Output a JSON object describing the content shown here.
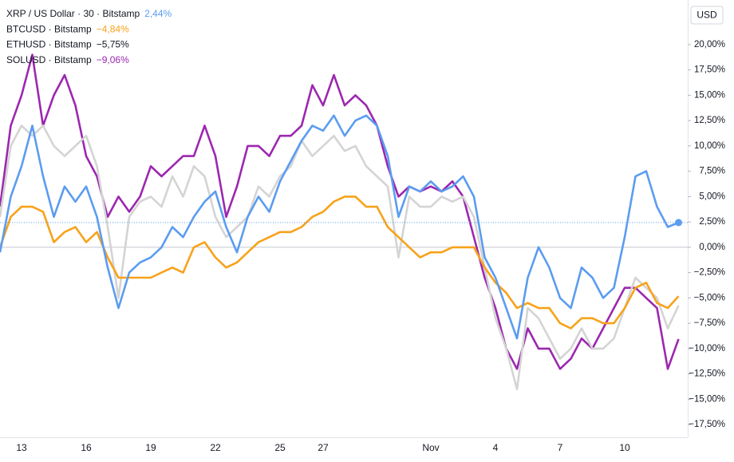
{
  "chart_data": {
    "type": "line",
    "unit": "USD",
    "x": [
      "",
      "",
      "13",
      null,
      null,
      null,
      null,
      null,
      "16",
      null,
      null,
      null,
      null,
      null,
      "19",
      null,
      null,
      null,
      null,
      null,
      "22",
      null,
      null,
      null,
      null,
      null,
      "25",
      null,
      null,
      null,
      "27",
      null,
      null,
      null,
      null,
      null,
      null,
      null,
      null,
      null,
      "Nov",
      null,
      null,
      null,
      null,
      null,
      "4",
      null,
      null,
      null,
      null,
      null,
      "7",
      null,
      null,
      null,
      null,
      null,
      "10",
      null,
      null,
      null,
      null,
      null
    ],
    "series": [
      {
        "name": "XRP / US Dollar · 30 · Bitstamp",
        "color": "#5b9cf0",
        "value_label": "2,44%",
        "values": [
          -0.5,
          5,
          8,
          12,
          7,
          3,
          6,
          4.5,
          6,
          3,
          -2,
          -6,
          -2.5,
          -1.5,
          -1,
          0,
          2,
          1,
          3,
          4.5,
          5.5,
          2,
          -0.5,
          3,
          5,
          3.5,
          6.5,
          8.5,
          10.5,
          12,
          11.5,
          13,
          11,
          12.5,
          13,
          12,
          9,
          3,
          6,
          5.5,
          6.5,
          5.5,
          6,
          7,
          5,
          -1,
          -3,
          -6,
          -9,
          -3,
          0,
          -2,
          -5,
          -6,
          -2,
          -3,
          -5,
          -4,
          1,
          7,
          7.5,
          4,
          2,
          2.44
        ]
      },
      {
        "name": "BTCUSD · Bitstamp",
        "color": "#f7a21b",
        "value_label": "−4,84%",
        "values": [
          0,
          3,
          4,
          4,
          3.5,
          0.5,
          1.5,
          2,
          0.5,
          1.5,
          -1,
          -3,
          -3,
          -3,
          -3,
          -2.5,
          -2,
          -2.5,
          0,
          0.5,
          -1,
          -2,
          -1.5,
          -0.5,
          0.5,
          1,
          1.5,
          1.5,
          2,
          3,
          3.5,
          4.5,
          5,
          5,
          4,
          4,
          2,
          1,
          0,
          -1,
          -0.5,
          -0.5,
          0,
          0,
          0,
          -2,
          -3.5,
          -4.5,
          -6,
          -5.5,
          -6,
          -6,
          -7.5,
          -8,
          -7,
          -7,
          -7.5,
          -7.5,
          -6,
          -4,
          -3.5,
          -5.5,
          -6,
          -4.84
        ]
      },
      {
        "name": "ETHUSD · Bitstamp",
        "color": "#d4d4d4",
        "value_label": "−5,75%",
        "label_color": "#131722",
        "values": [
          3,
          10,
          12,
          11,
          12,
          10,
          9,
          10,
          11,
          8,
          2,
          -5,
          3,
          4.5,
          5,
          4,
          7,
          5,
          8,
          7,
          3,
          1,
          2,
          3,
          6,
          5,
          7,
          8,
          10.5,
          9,
          10,
          11,
          9.5,
          10,
          8,
          7,
          6,
          -1,
          5,
          4,
          4,
          5,
          4.5,
          5,
          3,
          -2,
          -7,
          -10,
          -14,
          -6,
          -7,
          -9,
          -11,
          -10,
          -8,
          -10,
          -10,
          -9,
          -6,
          -3,
          -4,
          -5,
          -8,
          -5.75
        ]
      },
      {
        "name": "SOLUSD · Bitstamp",
        "color": "#9c27b0",
        "value_label": "−9,06%",
        "values": [
          4,
          12,
          15,
          19,
          12,
          15,
          17,
          14,
          9,
          7,
          3,
          5,
          3.5,
          5,
          8,
          7,
          8,
          9,
          9,
          12,
          9,
          3,
          6,
          10,
          10,
          9,
          11,
          11,
          12,
          16,
          14,
          17,
          14,
          15,
          14,
          12,
          8,
          5,
          6,
          5.5,
          6,
          5.5,
          6.5,
          5,
          1,
          -3,
          -6,
          -10,
          -12,
          -8,
          -10,
          -10,
          -12,
          -11,
          -9,
          -10,
          -8,
          -6,
          -4,
          -4,
          -5,
          -6,
          -12,
          -9.06
        ]
      }
    ],
    "ylim": [
      -18.75,
      24.4
    ],
    "yticks": [
      {
        "value": 20,
        "label": "20,00%"
      },
      {
        "value": 17.5,
        "label": "17,50%"
      },
      {
        "value": 15,
        "label": "15,00%"
      },
      {
        "value": 12.5,
        "label": "12,50%"
      },
      {
        "value": 10,
        "label": "10,00%"
      },
      {
        "value": 7.5,
        "label": "7,50%"
      },
      {
        "value": 5,
        "label": "5,00%"
      },
      {
        "value": 2.5,
        "label": "2,50%"
      },
      {
        "value": 0,
        "label": "0,00%"
      },
      {
        "value": -2.5,
        "label": "−2,50%"
      },
      {
        "value": -5,
        "label": "−5,00%"
      },
      {
        "value": -7.5,
        "label": "−7,50%"
      },
      {
        "value": -10,
        "label": "−10,00%"
      },
      {
        "value": -12.5,
        "label": "−12,50%"
      },
      {
        "value": -15,
        "label": "−15,00%"
      },
      {
        "value": -17.5,
        "label": "−17,50%"
      }
    ],
    "grid": false
  }
}
